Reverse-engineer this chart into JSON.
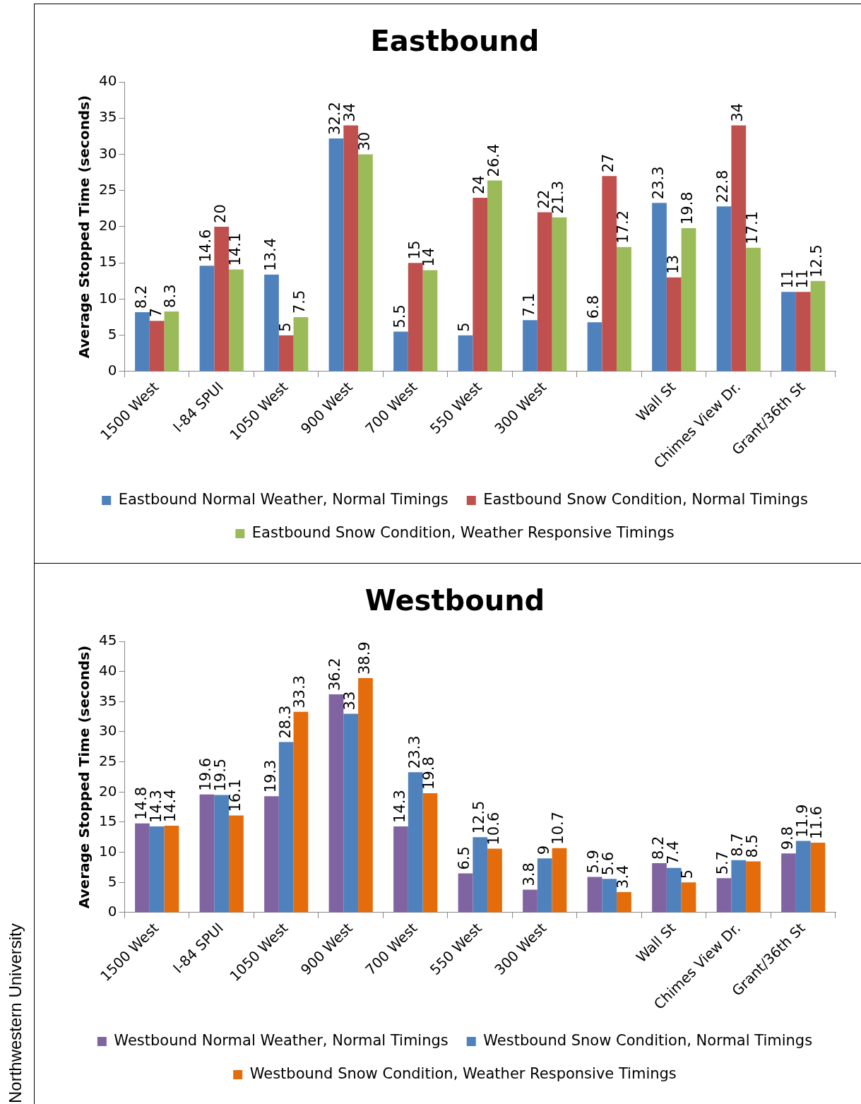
{
  "chart_data": [
    {
      "type": "bar",
      "title": "Eastbound",
      "ylabel": "Average Stopped Time (seconds)",
      "categories": [
        "1500 West",
        "I-84 SPUI",
        "1050 West",
        "900 West",
        "700 West",
        "550 West",
        "300 West",
        null,
        "Wall St",
        "Chimes View Dr.",
        "Grant/36th St"
      ],
      "series": [
        {
          "name": "Eastbound Normal Weather, Normal Timings",
          "color": "#4f81bd",
          "values": [
            8.2,
            14.6,
            13.4,
            32.2,
            5.5,
            5,
            7.1,
            6.8,
            23.3,
            22.8,
            11
          ]
        },
        {
          "name": "Eastbound Snow Condition, Normal Timings",
          "color": "#c0504d",
          "values": [
            7,
            20,
            5,
            34,
            15,
            24,
            22,
            27,
            13,
            34,
            11
          ]
        },
        {
          "name": "Eastbound Snow Condition, Weather Responsive Timings",
          "color": "#9bbb59",
          "values": [
            8.3,
            14.1,
            7.5,
            30,
            14,
            26.4,
            21.3,
            17.2,
            19.8,
            17.1,
            12.5
          ]
        }
      ],
      "ylim": [
        0,
        40
      ],
      "yticks": [
        0,
        5,
        10,
        15,
        20,
        25,
        30,
        35,
        40
      ],
      "grid": false,
      "legend": "bottom",
      "data_labels": true
    },
    {
      "type": "bar",
      "title": "Westbound",
      "ylabel": "Average Stopped Time (seconds)",
      "categories": [
        "1500 West",
        "I-84 SPUI",
        "1050 West",
        "900 West",
        "700 West",
        "550 West",
        "300 West",
        null,
        "Wall St",
        "Chimes View Dr.",
        "Grant/36th St"
      ],
      "series": [
        {
          "name": "Westbound Normal Weather, Normal Timings",
          "color": "#8064a2",
          "values": [
            14.8,
            19.6,
            19.3,
            36.2,
            14.3,
            6.5,
            3.8,
            5.9,
            8.2,
            5.7,
            9.8
          ]
        },
        {
          "name": "Westbound Snow Condition, Normal Timings",
          "color": "#4f81bd",
          "values": [
            14.3,
            19.5,
            28.3,
            33,
            23.3,
            12.5,
            9,
            5.6,
            7.4,
            8.7,
            11.9
          ]
        },
        {
          "name": "Westbound Snow Condition, Weather Responsive Timings",
          "color": "#e46c0a",
          "values": [
            14.4,
            16.1,
            33.3,
            38.9,
            19.8,
            10.6,
            10.7,
            3.4,
            5,
            8.5,
            11.6
          ]
        }
      ],
      "ylim": [
        0,
        45
      ],
      "yticks": [
        0,
        5,
        10,
        15,
        20,
        25,
        30,
        35,
        40,
        45
      ],
      "grid": false,
      "legend": "bottom",
      "data_labels": true,
      "annotations": [
        "Northwestern University"
      ]
    }
  ]
}
